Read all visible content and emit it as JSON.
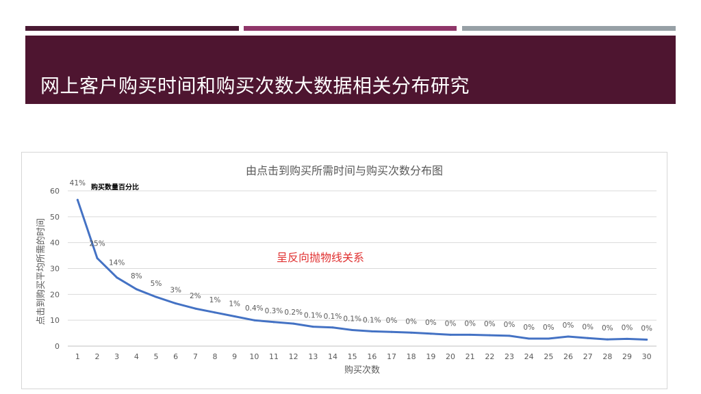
{
  "slide": {
    "title": "网上客户购买时间和购买次数大数据相关分布研究",
    "colors": {
      "stripe1": "#4a1a33",
      "stripe2": "#8f3669",
      "stripe3": "#97a0a6",
      "banner": "#4e1530",
      "series": "#4472c4",
      "annotation": "#e03030"
    }
  },
  "chart_data": {
    "type": "line",
    "title": "由点击到购买所需时间与购买次数分布图",
    "xlabel": "购买次数",
    "ylabel": "点击到购买平均所需的时间",
    "ylim": [
      0,
      60
    ],
    "yticks": [
      0,
      10,
      20,
      30,
      40,
      50,
      60
    ],
    "grid": true,
    "legend": "top-left",
    "categories": [
      "1",
      "2",
      "3",
      "4",
      "5",
      "6",
      "7",
      "8",
      "9",
      "10",
      "11",
      "12",
      "13",
      "14",
      "15",
      "16",
      "17",
      "18",
      "19",
      "20",
      "21",
      "22",
      "23",
      "24",
      "25",
      "26",
      "27",
      "28",
      "29",
      "30"
    ],
    "series": [
      {
        "name": "购买数量百分比",
        "values": [
          56.5,
          34,
          26.5,
          22,
          19,
          16.5,
          14.5,
          13,
          11.5,
          10,
          9.3,
          8.7,
          7.5,
          7.2,
          6.2,
          5.7,
          5.5,
          5.2,
          4.8,
          4.4,
          4.4,
          4.2,
          4.0,
          2.9,
          2.9,
          3.7,
          3.1,
          2.6,
          2.8,
          2.5
        ],
        "labels": [
          "41%",
          "25%",
          "14%",
          "8%",
          "5%",
          "3%",
          "2%",
          "1%",
          "1%",
          "0.4%",
          "0.3%",
          "0.2%",
          "0.1%",
          "0.1%",
          "0.1%",
          "0.1%",
          "0%",
          "0%",
          "0%",
          "0%",
          "0%",
          "0%",
          "0%",
          "0%",
          "0%",
          "0%",
          "0%",
          "0%",
          "0%",
          "0%"
        ]
      }
    ],
    "annotation": "呈反向抛物线关系"
  }
}
